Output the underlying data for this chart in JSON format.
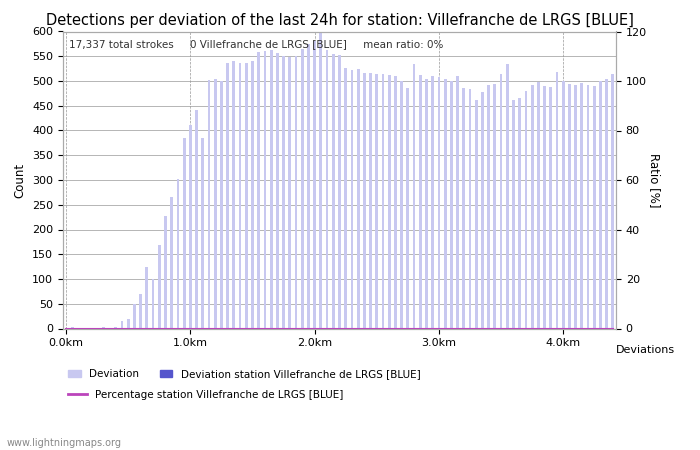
{
  "title": "Detections per deviation of the last 24h for station: Villefranche de LRGS [BLUE]",
  "subtitle": "17,337 total strokes     0 Villefranche de LRGS [BLUE]     mean ratio: 0%",
  "ylabel_left": "Count",
  "ylabel_right": "Ratio [%]",
  "x_tick_labels": [
    "0.0km",
    "1.0km",
    "2.0km",
    "3.0km",
    "4.0km",
    "Deviations"
  ],
  "x_tick_positions": [
    0,
    20,
    40,
    60,
    80
  ],
  "ylim_left": [
    0,
    600
  ],
  "ylim_right": [
    0,
    120
  ],
  "yticks_left": [
    0,
    50,
    100,
    150,
    200,
    250,
    300,
    350,
    400,
    450,
    500,
    550,
    600
  ],
  "yticks_right": [
    0,
    20,
    40,
    60,
    80,
    100,
    120
  ],
  "bar_color_all": "#c8c8f0",
  "bar_color_station": "#5555cc",
  "line_color": "#bb44bb",
  "watermark": "www.lightningmaps.org",
  "background_color": "#ffffff",
  "grid_color": "#999999",
  "title_fontsize": 10.5,
  "axis_fontsize": 8.5,
  "tick_fontsize": 8,
  "bar_width": 0.45,
  "all_deviations": [
    2,
    3,
    1,
    1,
    2,
    1,
    3,
    2,
    4,
    15,
    20,
    50,
    70,
    125,
    100,
    168,
    227,
    265,
    302,
    385,
    411,
    441,
    385,
    502,
    505,
    500,
    537,
    540,
    537,
    537,
    540,
    558,
    560,
    563,
    557,
    550,
    548,
    550,
    565,
    575,
    580,
    597,
    562,
    555,
    552,
    527,
    522,
    525,
    517,
    516,
    514,
    515,
    512,
    510,
    500,
    485,
    535,
    512,
    505,
    510,
    508,
    505,
    500,
    510,
    485,
    484,
    462,
    478,
    492,
    493,
    515,
    535,
    462,
    465,
    480,
    492,
    497,
    490,
    488,
    519,
    499,
    493,
    492,
    495,
    492,
    490,
    500,
    505,
    515
  ],
  "station_deviations": [
    0,
    0,
    0,
    0,
    0,
    0,
    0,
    0,
    0,
    0,
    0,
    0,
    0,
    0,
    0,
    0,
    0,
    0,
    0,
    0,
    0,
    0,
    0,
    0,
    0,
    0,
    0,
    0,
    0,
    0,
    0,
    0,
    0,
    0,
    0,
    0,
    0,
    0,
    0,
    0,
    0,
    0,
    0,
    0,
    0,
    0,
    0,
    0,
    0,
    0,
    0,
    0,
    0,
    0,
    0,
    0,
    0,
    0,
    0,
    0,
    0,
    0,
    0,
    0,
    0,
    0,
    0,
    0,
    0,
    0,
    0,
    0,
    0,
    0,
    0,
    0,
    0,
    0,
    0,
    0,
    0,
    0,
    0,
    0,
    0,
    0,
    0,
    0,
    0
  ],
  "percentage": [
    0,
    0,
    0,
    0,
    0,
    0,
    0,
    0,
    0,
    0,
    0,
    0,
    0,
    0,
    0,
    0,
    0,
    0,
    0,
    0,
    0,
    0,
    0,
    0,
    0,
    0,
    0,
    0,
    0,
    0,
    0,
    0,
    0,
    0,
    0,
    0,
    0,
    0,
    0,
    0,
    0,
    0,
    0,
    0,
    0,
    0,
    0,
    0,
    0,
    0,
    0,
    0,
    0,
    0,
    0,
    0,
    0,
    0,
    0,
    0,
    0,
    0,
    0,
    0,
    0,
    0,
    0,
    0,
    0,
    0,
    0,
    0,
    0,
    0,
    0,
    0,
    0,
    0,
    0,
    0,
    0,
    0,
    0,
    0,
    0,
    0,
    0,
    0,
    0
  ]
}
